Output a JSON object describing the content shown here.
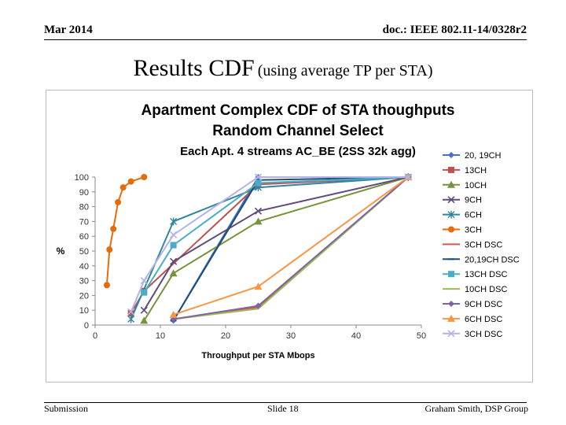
{
  "header": {
    "date": "Mar 2014",
    "doc": "doc.: IEEE 802.11-14/0328r2"
  },
  "slide_title": {
    "main": "Results CDF",
    "sub": "(using average TP per STA)"
  },
  "footer": {
    "left": "Submission",
    "center": "Slide 18",
    "right": "Graham Smith, DSP Group"
  },
  "chart_data": {
    "type": "line",
    "title_lines": [
      "Apartment Complex CDF of STA thoughputs",
      "Random Channel Select",
      "Each Apt. 4 streams AC_BE (2SS 32k agg)"
    ],
    "xlabel": "Throughput  per STA Mbops",
    "ylabel": "%",
    "xlim": [
      0,
      50
    ],
    "ylim": [
      0,
      100
    ],
    "xticks": [
      0,
      10,
      20,
      30,
      40,
      50
    ],
    "yticks": [
      0,
      10,
      20,
      30,
      40,
      50,
      60,
      70,
      80,
      90,
      100
    ],
    "legend_position": "right",
    "series": [
      {
        "name": "20, 19CH",
        "color": "#4472c4",
        "marker": "diamond",
        "points": [
          [
            12,
            3
          ],
          [
            25,
            100
          ],
          [
            48,
            100
          ]
        ]
      },
      {
        "name": "13CH",
        "color": "#c0504d",
        "marker": "square",
        "points": [
          [
            5.5,
            8
          ],
          [
            7.5,
            23
          ],
          [
            25,
            95
          ],
          [
            48,
            100
          ]
        ]
      },
      {
        "name": "10CH",
        "color": "#77933c",
        "marker": "triangle",
        "points": [
          [
            7.5,
            3
          ],
          [
            12,
            35
          ],
          [
            25,
            70
          ],
          [
            48,
            100
          ]
        ]
      },
      {
        "name": "9CH",
        "color": "#604a7b",
        "marker": "x",
        "points": [
          [
            7.5,
            10
          ],
          [
            12,
            43
          ],
          [
            25,
            77
          ],
          [
            48,
            100
          ]
        ]
      },
      {
        "name": "6CH",
        "color": "#31859c",
        "marker": "star",
        "points": [
          [
            5.5,
            4
          ],
          [
            12,
            70
          ],
          [
            25,
            93
          ],
          [
            48,
            100
          ]
        ]
      },
      {
        "name": "3CH",
        "color": "#e46c0a",
        "marker": "circle",
        "points": [
          [
            1.8,
            27
          ],
          [
            2.2,
            51
          ],
          [
            2.8,
            65
          ],
          [
            3.5,
            83
          ],
          [
            4.3,
            93
          ],
          [
            5.5,
            97
          ],
          [
            7.5,
            100
          ]
        ]
      },
      {
        "name": "3CH DSC",
        "color": "#d9534f",
        "marker": "none",
        "points": [
          [
            12,
            4
          ],
          [
            25,
            12
          ],
          [
            48,
            100
          ]
        ]
      },
      {
        "name": "20,19CH DSC",
        "color": "#1f4e79",
        "marker": "dash",
        "points": [
          [
            12,
            3
          ],
          [
            25,
            98
          ],
          [
            48,
            100
          ]
        ]
      },
      {
        "name": "13CH DSC",
        "color": "#4bacc6",
        "marker": "square",
        "points": [
          [
            7.5,
            22
          ],
          [
            12,
            54
          ],
          [
            25,
            96
          ],
          [
            48,
            100
          ]
        ]
      },
      {
        "name": "10CH DSC",
        "color": "#9bbb59",
        "marker": "none",
        "points": [
          [
            12,
            4
          ],
          [
            25,
            11
          ],
          [
            48,
            100
          ]
        ]
      },
      {
        "name": "9CH DSC",
        "color": "#8064a2",
        "marker": "diamond",
        "points": [
          [
            12,
            4
          ],
          [
            25,
            13
          ],
          [
            48,
            100
          ]
        ]
      },
      {
        "name": "6CH DSC",
        "color": "#f79646",
        "marker": "triangle",
        "points": [
          [
            12,
            7
          ],
          [
            25,
            26
          ],
          [
            48,
            100
          ]
        ]
      },
      {
        "name": "3CH DSC",
        "color": "#b3b3e6",
        "marker": "x",
        "points": [
          [
            5.5,
            9
          ],
          [
            7.5,
            30
          ],
          [
            12,
            61
          ],
          [
            25,
            100
          ],
          [
            48,
            100
          ]
        ]
      }
    ]
  }
}
